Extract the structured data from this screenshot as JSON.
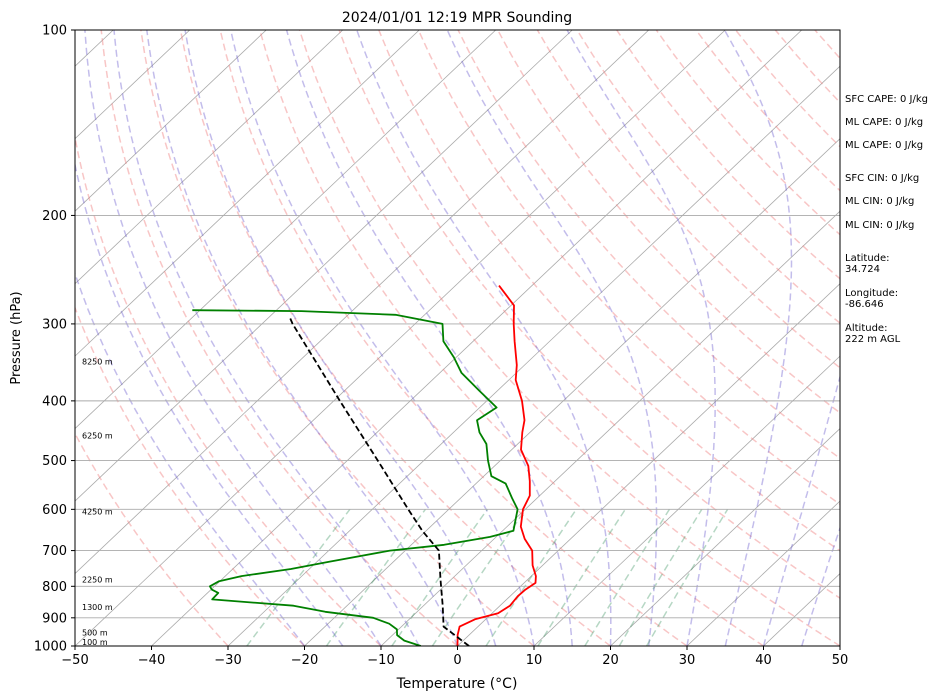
{
  "chart_data": {
    "type": "line",
    "title": "2024/01/01 12:19 MPR Sounding",
    "xlabel": "Temperature (°C)",
    "ylabel": "Pressure (hPa)",
    "xlim": [
      -50,
      50
    ],
    "ylim": [
      1000,
      100
    ],
    "y_scale": "log",
    "skew": "skew-T log-P",
    "x_ticks": [
      "−50",
      "−40",
      "−30",
      "−20",
      "−10",
      "0",
      "10",
      "20",
      "30",
      "40",
      "50"
    ],
    "y_ticks": [
      "1000",
      "900",
      "800",
      "700",
      "600",
      "500",
      "400",
      "300",
      "200",
      "100"
    ],
    "grid": "horizontal isobars",
    "series": [
      {
        "color": "#ff0000",
        "points": [
          {
            "p": 1000,
            "t": 0.0
          },
          {
            "p": 960,
            "t": -1.5
          },
          {
            "p": 930,
            "t": -2.4
          },
          {
            "p": 905,
            "t": -1.4
          },
          {
            "p": 885,
            "t": 0.8
          },
          {
            "p": 860,
            "t": 1.3
          },
          {
            "p": 830,
            "t": 1.0
          },
          {
            "p": 810,
            "t": 1.1
          },
          {
            "p": 790,
            "t": 1.5
          },
          {
            "p": 770,
            "t": 0.6
          },
          {
            "p": 740,
            "t": -1.3
          },
          {
            "p": 700,
            "t": -3.4
          },
          {
            "p": 670,
            "t": -6.0
          },
          {
            "p": 640,
            "t": -8.2
          },
          {
            "p": 600,
            "t": -10.3
          },
          {
            "p": 570,
            "t": -11.3
          },
          {
            "p": 540,
            "t": -13.3
          },
          {
            "p": 510,
            "t": -15.6
          },
          {
            "p": 480,
            "t": -18.8
          },
          {
            "p": 450,
            "t": -21.0
          },
          {
            "p": 430,
            "t": -22.4
          },
          {
            "p": 400,
            "t": -25.4
          },
          {
            "p": 370,
            "t": -29.1
          },
          {
            "p": 350,
            "t": -31.0
          },
          {
            "p": 320,
            "t": -34.6
          },
          {
            "p": 300,
            "t": -37.1
          },
          {
            "p": 280,
            "t": -39.6
          },
          {
            "p": 260,
            "t": -44.3
          }
        ]
      },
      {
        "color": "#008000",
        "points": [
          {
            "p": 1000,
            "t": -4.8
          },
          {
            "p": 980,
            "t": -7.7
          },
          {
            "p": 960,
            "t": -9.4
          },
          {
            "p": 940,
            "t": -10.2
          },
          {
            "p": 920,
            "t": -12.0
          },
          {
            "p": 900,
            "t": -14.9
          },
          {
            "p": 880,
            "t": -22.0
          },
          {
            "p": 860,
            "t": -27.0
          },
          {
            "p": 840,
            "t": -38.5
          },
          {
            "p": 820,
            "t": -38.6
          },
          {
            "p": 810,
            "t": -39.9
          },
          {
            "p": 800,
            "t": -40.6
          },
          {
            "p": 785,
            "t": -40.1
          },
          {
            "p": 770,
            "t": -37.9
          },
          {
            "p": 750,
            "t": -32.4
          },
          {
            "p": 730,
            "t": -28.4
          },
          {
            "p": 700,
            "t": -22.0
          },
          {
            "p": 685,
            "t": -15.7
          },
          {
            "p": 665,
            "t": -10.8
          },
          {
            "p": 650,
            "t": -8.6
          },
          {
            "p": 600,
            "t": -11.0
          },
          {
            "p": 575,
            "t": -13.3
          },
          {
            "p": 545,
            "t": -16.1
          },
          {
            "p": 530,
            "t": -19.0
          },
          {
            "p": 500,
            "t": -21.6
          },
          {
            "p": 470,
            "t": -24.1
          },
          {
            "p": 450,
            "t": -26.6
          },
          {
            "p": 430,
            "t": -28.6
          },
          {
            "p": 410,
            "t": -27.8
          },
          {
            "p": 385,
            "t": -32.4
          },
          {
            "p": 360,
            "t": -37.2
          },
          {
            "p": 340,
            "t": -40.3
          },
          {
            "p": 320,
            "t": -43.9
          },
          {
            "p": 300,
            "t": -46.4
          },
          {
            "p": 290,
            "t": -53.8
          },
          {
            "p": 286,
            "t": -66.6
          },
          {
            "p": 285,
            "t": -81.0
          }
        ]
      },
      {
        "color": "#000000",
        "dashed": true,
        "points": [
          {
            "p": 1000,
            "t": 1.5
          },
          {
            "p": 930,
            "t": -4.5
          },
          {
            "p": 860,
            "t": -7.5
          },
          {
            "p": 780,
            "t": -11.4
          },
          {
            "p": 700,
            "t": -15.6
          },
          {
            "p": 650,
            "t": -20.5
          },
          {
            "p": 600,
            "t": -25.3
          },
          {
            "p": 500,
            "t": -36.0
          },
          {
            "p": 400,
            "t": -49.2
          },
          {
            "p": 300,
            "t": -66.0
          },
          {
            "p": 292,
            "t": -67.4
          }
        ]
      }
    ],
    "height_labels": [
      {
        "p": 985,
        "text": "100 m"
      },
      {
        "p": 950,
        "text": "500 m"
      },
      {
        "p": 864,
        "text": "1300 m"
      },
      {
        "p": 780,
        "text": "2250 m"
      },
      {
        "p": 605,
        "text": "4250 m"
      },
      {
        "p": 455,
        "text": "6250 m"
      },
      {
        "p": 345,
        "text": "8250 m"
      }
    ],
    "background_lines": {
      "isotherms_color": "#aaaaaa",
      "dry_adiabats_color": "#f08080",
      "moist_adiabats_color": "#6a5acd",
      "mixing_ratio_color": "#2e8b57"
    }
  },
  "indices": {
    "sfc_cape": "SFC CAPE: 0 J/kg",
    "ml_cape_1": "ML CAPE: 0 J/kg",
    "ml_cape_2": "ML CAPE: 0 J/kg",
    "sfc_cin": "SFC CIN: 0 J/kg",
    "ml_cin_1": "ML CIN: 0 J/kg",
    "ml_cin_2": "ML CIN: 0 J/kg",
    "latitude": "Latitude:\n34.724",
    "longitude": "Longitude:\n-86.646",
    "altitude": "Altitude:\n222 m AGL"
  }
}
